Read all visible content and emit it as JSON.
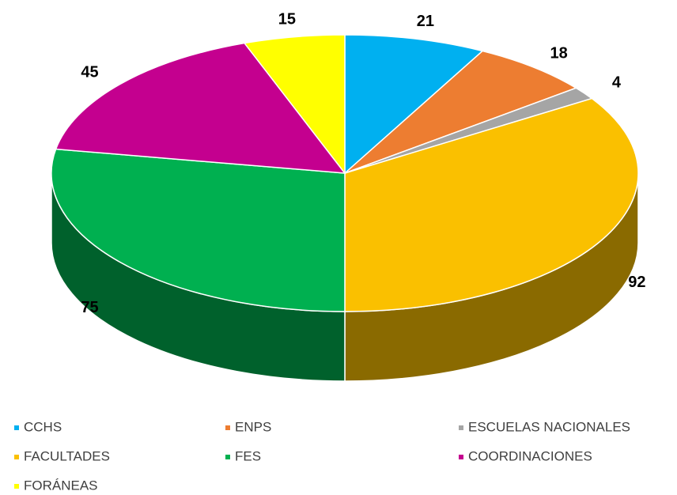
{
  "chart_data": {
    "type": "pie3d",
    "categories": [
      "CCHS",
      "ENPS",
      "ESCUELAS NACIONALES",
      "FACULTADES",
      "FES",
      "COORDINACIONES",
      "FORÁNEAS"
    ],
    "values": [
      21,
      18,
      4,
      92,
      75,
      45,
      15
    ],
    "colors": [
      "#00b0f0",
      "#ed7d31",
      "#a5a5a5",
      "#fac000",
      "#00b050",
      "#c4008f",
      "#ffff00"
    ],
    "legend": "bottom"
  }
}
